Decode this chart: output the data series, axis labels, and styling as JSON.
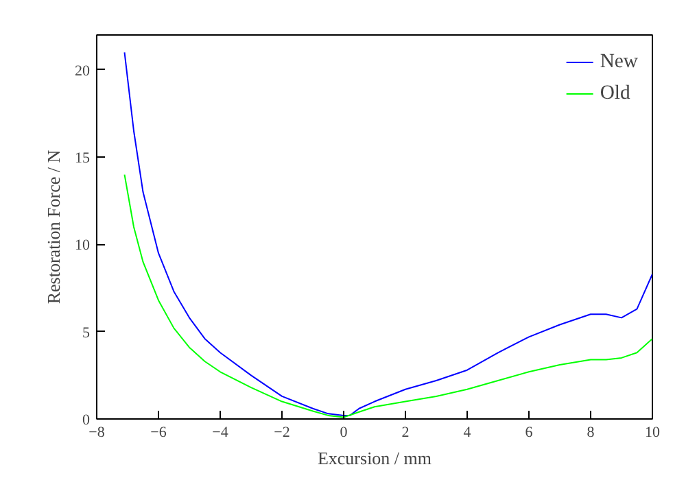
{
  "chart_data": {
    "type": "line",
    "xlabel": "Excursion / mm",
    "ylabel": "Restoration Force / N",
    "xlim": [
      -8,
      10
    ],
    "ylim": [
      0,
      22
    ],
    "xticks": [
      -8,
      -6,
      -4,
      -2,
      0,
      2,
      4,
      6,
      8,
      10
    ],
    "yticks": [
      0,
      5,
      10,
      15,
      20
    ],
    "grid": false,
    "legend": "top right",
    "line_style": "solid",
    "series": [
      {
        "name": "New",
        "color": "#0000ff",
        "x": [
          -7.1,
          -6.8,
          -6.5,
          -6,
          -5.5,
          -5,
          -4.5,
          -4,
          -3,
          -2,
          -1,
          -0.5,
          0,
          0.2,
          0.5,
          1,
          2,
          3,
          4,
          5,
          6,
          7,
          8,
          8.5,
          9,
          9.5,
          10
        ],
        "values": [
          21,
          16.5,
          13,
          9.5,
          7.3,
          5.8,
          4.6,
          3.8,
          2.5,
          1.3,
          0.6,
          0.3,
          0.2,
          0.2,
          0.6,
          1.0,
          1.7,
          2.2,
          2.8,
          3.8,
          4.7,
          5.4,
          6.0,
          6.0,
          5.8,
          6.3,
          8.3
        ]
      },
      {
        "name": "Old",
        "color": "#00ff00",
        "x": [
          -7.1,
          -6.8,
          -6.5,
          -6,
          -5.5,
          -5,
          -4.5,
          -4,
          -3,
          -2,
          -1,
          -0.5,
          0,
          0.5,
          1,
          2,
          3,
          4,
          5,
          6,
          7,
          8,
          8.5,
          9,
          9.5,
          10
        ],
        "values": [
          14,
          11,
          9,
          6.8,
          5.2,
          4.1,
          3.3,
          2.7,
          1.8,
          1.0,
          0.45,
          0.2,
          0.1,
          0.4,
          0.7,
          1.0,
          1.3,
          1.7,
          2.2,
          2.7,
          3.1,
          3.4,
          3.4,
          3.5,
          3.8,
          4.6
        ]
      }
    ]
  }
}
